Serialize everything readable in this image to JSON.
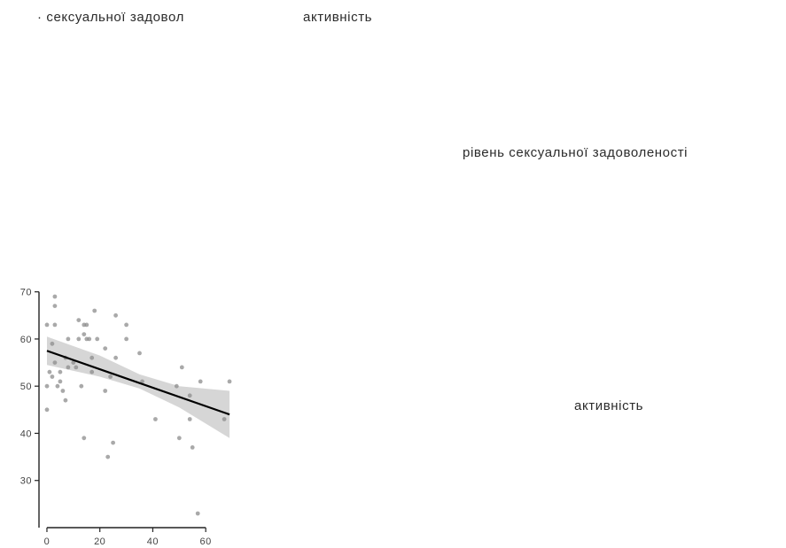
{
  "labels": {
    "top_left": "· сексуальної задовол",
    "top_middle": "активність",
    "right_upper": "рівень сексуальної задоволеності",
    "right_lower": "активність"
  },
  "chart_data": {
    "type": "scatter",
    "title": "",
    "xlabel": "",
    "ylabel": "",
    "xlim": [
      -3,
      72
    ],
    "ylim": [
      20,
      72
    ],
    "x_ticks": [
      0,
      20,
      40,
      60
    ],
    "y_ticks": [
      30,
      40,
      50,
      60,
      70
    ],
    "grid": false,
    "points_color": "#8c8c8c",
    "trend_color": "#000000",
    "band_color": "#c8c8c8",
    "series": [
      {
        "points": [
          [
            0,
            63
          ],
          [
            0,
            50
          ],
          [
            0,
            45
          ],
          [
            1,
            53
          ],
          [
            2,
            59
          ],
          [
            2,
            52
          ],
          [
            3,
            69
          ],
          [
            3,
            67
          ],
          [
            3,
            63
          ],
          [
            3,
            55
          ],
          [
            4,
            50
          ],
          [
            5,
            53
          ],
          [
            5,
            51
          ],
          [
            6,
            49
          ],
          [
            7,
            56
          ],
          [
            7,
            47
          ],
          [
            8,
            60
          ],
          [
            8,
            54
          ],
          [
            10,
            55
          ],
          [
            11,
            54
          ],
          [
            12,
            64
          ],
          [
            12,
            60
          ],
          [
            13,
            50
          ],
          [
            14,
            63
          ],
          [
            14,
            61
          ],
          [
            14,
            39
          ],
          [
            15,
            60
          ],
          [
            15,
            63
          ],
          [
            16,
            60
          ],
          [
            17,
            56
          ],
          [
            17,
            53
          ],
          [
            18,
            66
          ],
          [
            19,
            60
          ],
          [
            22,
            58
          ],
          [
            22,
            49
          ],
          [
            23,
            35
          ],
          [
            24,
            52
          ],
          [
            25,
            38
          ],
          [
            26,
            65
          ],
          [
            26,
            56
          ],
          [
            30,
            63
          ],
          [
            30,
            60
          ],
          [
            35,
            57
          ],
          [
            36,
            51
          ],
          [
            41,
            43
          ],
          [
            49,
            50
          ],
          [
            50,
            39
          ],
          [
            51,
            54
          ],
          [
            54,
            48
          ],
          [
            54,
            43
          ],
          [
            55,
            37
          ],
          [
            57,
            23
          ],
          [
            58,
            51
          ],
          [
            67,
            43
          ],
          [
            69,
            51
          ]
        ]
      }
    ],
    "trend_line": {
      "x": [
        0,
        69
      ],
      "y": [
        57.5,
        44
      ]
    },
    "confidence_band": {
      "x": [
        0,
        20,
        35,
        50,
        69
      ],
      "upper": [
        60.5,
        56.5,
        52.5,
        50.0,
        49.0
      ],
      "lower": [
        54.5,
        52.0,
        49.5,
        45.5,
        39.0
      ]
    }
  }
}
